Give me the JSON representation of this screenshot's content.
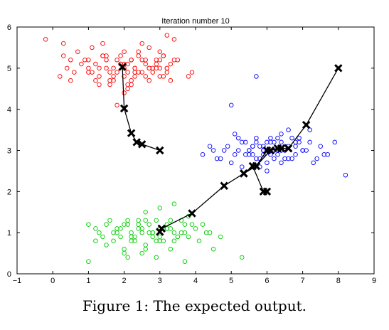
{
  "caption": "Figure 1: The expected output.",
  "chart_data": {
    "type": "scatter",
    "title": "Iteration number 10",
    "xlabel": "",
    "ylabel": "",
    "xlim": [
      -1,
      9
    ],
    "ylim": [
      0,
      6
    ],
    "xticks": [
      "−1",
      "0",
      "1",
      "2",
      "3",
      "4",
      "5",
      "6",
      "7",
      "8",
      "9"
    ],
    "yticks": [
      "0",
      "1",
      "2",
      "3",
      "4",
      "5",
      "6"
    ],
    "grid": false,
    "legend": "none",
    "colors": {
      "red": "#ff0000",
      "blue": "#0000ff",
      "green": "#00cc00",
      "centroid": "#000000"
    },
    "series": [
      {
        "color": "red",
        "marker": "circle",
        "x": [
          -0.2,
          0.2,
          0.3,
          0.4,
          0.5,
          0.6,
          0.7,
          0.3,
          0.5,
          0.8,
          1.0,
          1.1,
          1.3,
          1.5,
          1.7,
          1.9,
          2.0,
          2.1,
          2.2,
          2.3,
          2.5,
          2.7,
          2.9,
          3.0,
          3.1,
          3.2,
          3.3,
          3.5,
          3.8,
          3.9,
          1.0,
          1.2,
          1.4,
          1.6,
          1.8,
          2.0,
          2.2,
          2.4,
          2.6,
          2.8,
          3.0,
          3.2,
          1.1,
          1.3,
          1.5,
          1.7,
          1.9,
          2.1,
          2.3,
          2.5,
          2.7,
          2.9,
          3.1,
          1.5,
          1.8,
          2.0,
          2.2,
          2.4,
          2.6,
          2.8,
          3.0,
          3.2,
          3.4,
          1.2,
          1.4,
          1.6,
          1.9,
          2.1,
          2.3,
          2.5,
          2.7,
          1.7,
          2.0,
          2.2,
          2.4,
          2.9,
          3.1,
          3.3,
          2.0,
          1.3,
          1.0,
          1.6,
          2.6,
          2.1,
          3.4,
          1.8,
          2.7,
          0.9,
          2.3,
          3.0,
          1.4,
          3.2
        ],
        "y": [
          5.7,
          4.8,
          5.3,
          5.0,
          5.2,
          4.9,
          5.4,
          5.6,
          4.7,
          5.1,
          5.2,
          4.9,
          5.0,
          5.3,
          4.8,
          5.1,
          5.4,
          4.6,
          5.2,
          5.0,
          4.9,
          5.5,
          5.1,
          4.8,
          5.3,
          5.0,
          4.7,
          5.2,
          4.8,
          4.9,
          4.9,
          5.1,
          5.3,
          4.6,
          5.2,
          5.0,
          4.7,
          5.4,
          5.1,
          4.9,
          5.2,
          5.0,
          5.5,
          4.8,
          5.0,
          4.7,
          5.3,
          5.1,
          4.9,
          5.6,
          5.0,
          5.2,
          4.8,
          5.2,
          4.9,
          5.1,
          4.6,
          5.3,
          4.8,
          5.0,
          5.4,
          4.9,
          5.2,
          4.7,
          5.3,
          4.9,
          5.1,
          4.5,
          5.0,
          5.2,
          4.7,
          5.0,
          4.8,
          5.2,
          4.9,
          5.0,
          5.3,
          5.1,
          4.4,
          4.6,
          5.0,
          4.7,
          5.2,
          4.9,
          5.7,
          4.1,
          5.0,
          5.2,
          4.8,
          5.0,
          5.6,
          5.8
        ],
        "centroid": [
          2.0,
          5.0
        ]
      },
      {
        "color": "blue",
        "marker": "circle",
        "x": [
          4.2,
          4.5,
          4.7,
          4.9,
          5.1,
          5.3,
          5.5,
          5.7,
          5.9,
          6.1,
          6.3,
          6.5,
          6.7,
          6.9,
          7.1,
          7.3,
          7.5,
          7.7,
          4.4,
          4.6,
          4.8,
          5.0,
          5.2,
          5.4,
          5.6,
          5.8,
          6.0,
          6.2,
          6.4,
          6.6,
          6.8,
          7.0,
          7.2,
          7.4,
          5.2,
          5.4,
          5.6,
          5.8,
          6.0,
          6.2,
          6.4,
          6.6,
          6.8,
          5.5,
          5.7,
          5.9,
          6.1,
          6.3,
          6.5,
          6.7,
          5.3,
          5.5,
          5.7,
          5.9,
          6.1,
          6.3,
          6.5,
          6.0,
          6.2,
          5.8,
          7.6,
          7.9,
          8.2,
          5.0,
          5.1,
          5.7,
          5.9,
          6.4,
          6.6,
          6.9,
          7.2,
          5.6,
          6.0,
          6.4,
          6.8,
          7.0
        ],
        "y": [
          2.9,
          3.0,
          2.8,
          3.1,
          2.9,
          3.2,
          3.0,
          2.8,
          3.1,
          2.9,
          3.3,
          3.0,
          2.8,
          3.2,
          3.0,
          2.7,
          3.1,
          2.9,
          3.1,
          2.8,
          3.0,
          2.7,
          3.3,
          2.9,
          3.1,
          2.8,
          3.0,
          3.2,
          2.7,
          3.1,
          2.9,
          3.0,
          3.2,
          2.8,
          3.0,
          3.2,
          2.9,
          3.1,
          2.7,
          3.0,
          3.2,
          2.8,
          3.1,
          3.0,
          3.3,
          2.9,
          3.2,
          3.0,
          2.8,
          3.3,
          2.6,
          2.9,
          3.2,
          3.0,
          3.3,
          2.9,
          3.1,
          2.5,
          2.8,
          2.6,
          2.9,
          3.2,
          2.4,
          4.1,
          3.4,
          4.8,
          3.0,
          3.4,
          3.5,
          3.3,
          3.5,
          3.1,
          3.2,
          3.0,
          3.2,
          3.0
        ],
        "centroid": [
          6.2,
          3.0
        ]
      },
      {
        "color": "green",
        "marker": "circle",
        "x": [
          1.0,
          1.2,
          1.4,
          1.6,
          1.8,
          2.0,
          2.2,
          2.4,
          2.6,
          2.8,
          3.0,
          3.2,
          3.4,
          3.6,
          3.8,
          4.0,
          4.2,
          4.4,
          1.3,
          1.5,
          1.7,
          1.9,
          2.1,
          2.3,
          2.5,
          2.7,
          2.9,
          3.1,
          3.3,
          3.5,
          3.7,
          3.9,
          4.1,
          4.3,
          1.5,
          1.7,
          1.9,
          2.1,
          2.3,
          2.5,
          2.7,
          2.9,
          3.1,
          3.3,
          3.5,
          3.7,
          2.0,
          2.2,
          2.4,
          2.6,
          2.8,
          3.0,
          3.2,
          3.4,
          3.6,
          1.8,
          2.0,
          2.2,
          2.4,
          2.6,
          2.8,
          3.0,
          3.2,
          2.1,
          2.5,
          2.9,
          3.3,
          3.7,
          4.5,
          4.7,
          5.3,
          1.0,
          1.2,
          2.6,
          3.0,
          3.4,
          3.8
        ],
        "y": [
          1.2,
          1.1,
          0.9,
          1.3,
          1.0,
          1.2,
          0.8,
          1.1,
          1.3,
          0.9,
          1.1,
          1.2,
          1.0,
          1.3,
          0.9,
          1.1,
          1.2,
          1.0,
          1.0,
          1.2,
          0.8,
          1.1,
          1.3,
          0.9,
          1.0,
          1.2,
          0.8,
          1.1,
          1.3,
          0.9,
          1.0,
          1.2,
          0.8,
          1.0,
          0.7,
          1.0,
          0.9,
          1.2,
          0.8,
          1.1,
          1.0,
          1.3,
          0.8,
          1.1,
          0.9,
          1.2,
          0.6,
          1.0,
          1.3,
          0.7,
          1.0,
          0.9,
          1.1,
          0.8,
          1.0,
          1.1,
          0.5,
          0.9,
          1.2,
          0.6,
          1.0,
          0.8,
          1.1,
          0.4,
          0.5,
          0.4,
          0.6,
          0.3,
          0.6,
          0.9,
          0.4,
          0.3,
          0.8,
          1.5,
          1.6,
          1.7,
          1.4
        ],
        "centroid": [
          3.9,
          1.5
        ]
      }
    ],
    "centroid_paths": [
      {
        "x": [
          3.0,
          2.5,
          2.35,
          2.2,
          2.0,
          1.95
        ],
        "y": [
          3.0,
          3.15,
          3.2,
          3.42,
          4.02,
          5.03
        ]
      },
      {
        "x": [
          6.0,
          5.9,
          5.6,
          5.35,
          5.35,
          5.7,
          6.1,
          6.4,
          6.6
        ],
        "y": [
          2.0,
          2.0,
          2.62,
          2.44,
          2.44,
          2.62,
          3.0,
          3.05,
          3.05
        ]
      },
      {
        "x": [
          8.0,
          7.1,
          6.6,
          6.3,
          6.0,
          5.7,
          5.35,
          4.8,
          3.9,
          3.05,
          3.0
        ],
        "y": [
          5.0,
          3.62,
          3.05,
          3.05,
          3.0,
          2.62,
          2.44,
          2.14,
          1.47,
          1.1,
          1.02
        ]
      }
    ]
  }
}
